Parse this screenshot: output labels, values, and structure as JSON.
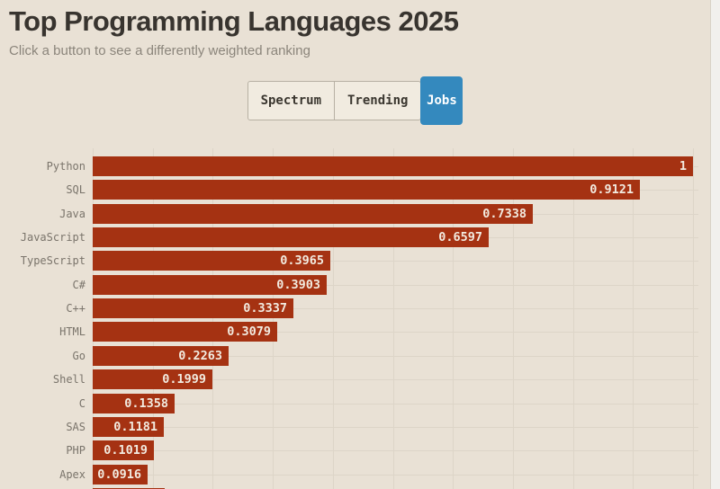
{
  "header": {
    "title": "Top Programming Languages 2025",
    "subtitle": "Click a button to see a differently weighted ranking"
  },
  "buttons": [
    {
      "label": "Spectrum",
      "active": false
    },
    {
      "label": "Trending",
      "active": false
    },
    {
      "label": "Jobs",
      "active": true
    }
  ],
  "colors": {
    "page_background": "#e9e1d5",
    "bar_red": "#a53212",
    "active_button_blue": "#3489be",
    "title_text": "#38342f",
    "subtitle_text": "#8b857b",
    "bar_label_text": "#7a746b",
    "bar_value_text": "#f2ebe0",
    "gridline": "#ddd5c8",
    "button_background": "#f1ebe0",
    "button_border": "#b7b0a3"
  },
  "chart_data": {
    "type": "bar",
    "orientation": "horizontal",
    "title": "Top Programming Languages 2025",
    "xlabel": "",
    "ylabel": "",
    "xlim": [
      0,
      1
    ],
    "grid": true,
    "grid_x_step": 0.1,
    "legend": false,
    "categories": [
      "Python",
      "SQL",
      "Java",
      "JavaScript",
      "TypeScript",
      "C#",
      "C++",
      "HTML",
      "Go",
      "Shell",
      "C",
      "SAS",
      "PHP",
      "Apex"
    ],
    "values": [
      1,
      0.9121,
      0.7338,
      0.6597,
      0.3965,
      0.3903,
      0.3337,
      0.3079,
      0.2263,
      0.1999,
      0.1358,
      0.1181,
      0.1019,
      0.0916
    ],
    "value_labels": [
      "1",
      "0.9121",
      "0.7338",
      "0.6597",
      "0.3965",
      "0.3903",
      "0.3337",
      "0.3079",
      "0.2263",
      "0.1999",
      "0.1358",
      "0.1181",
      "0.1019",
      "0.0916"
    ],
    "bar_color": "#a53212",
    "next_row_clipped_at_bottom": true
  }
}
